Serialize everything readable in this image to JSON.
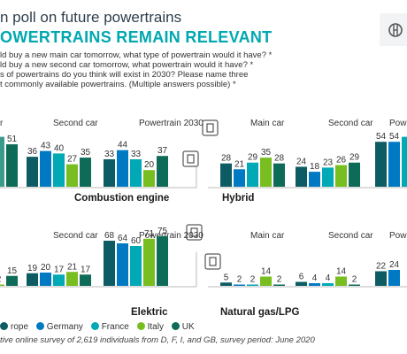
{
  "header": {
    "title": "n poll on future powertrains",
    "subtitle": "OWERTRAINS REMAIN RELEVANT",
    "questions": [
      "ld buy a new main car tomorrow, what type of powertrain would it have? *",
      "ld buy a new second car tomorrow, what powertrain would it have? *",
      "s of powertrains do you think will exist in 2030? Please name three",
      "t commonly available powertrains. (Multiple answers possible) *"
    ]
  },
  "colors": {
    "Europe": "#0d5c63",
    "Germany": "#0079c3",
    "France": "#00a9b5",
    "Italy": "#78be20",
    "UK": "#0e6b58",
    "Europe_light": "#3a9b8c"
  },
  "legend": {
    "items": [
      {
        "name": "rope",
        "color": "#0d5c63"
      },
      {
        "name": "Germany",
        "color": "#0079c3"
      },
      {
        "name": "France",
        "color": "#00a9b5"
      },
      {
        "name": "Italy",
        "color": "#78be20"
      },
      {
        "name": "UK",
        "color": "#0e6b58"
      }
    ]
  },
  "footnote": "tive online survey of 2,619 individuals from D, F, I, and GB, survey period: June 2020",
  "chart_data": [
    {
      "type": "bar",
      "title": "Combustion engine",
      "icon": "combustion-engine-icon",
      "groups": [
        {
          "label": "r",
          "series": [
            "Italy",
            "UK"
          ],
          "values": [
            null,
            51
          ]
        },
        {
          "label": "Second car",
          "series": [
            "Europe",
            "Germany",
            "France",
            "Italy",
            "UK"
          ],
          "values": [
            36,
            43,
            40,
            27,
            35
          ]
        },
        {
          "label": "Powertrain 2030",
          "series": [
            "Europe",
            "Germany",
            "France",
            "Italy",
            "UK"
          ],
          "values": [
            33,
            44,
            33,
            20,
            37
          ]
        }
      ]
    },
    {
      "type": "bar",
      "title": "Hybrid",
      "icon": "fuel-pump-icon",
      "groups": [
        {
          "label": "Main car",
          "series": [
            "Europe",
            "Germany",
            "France",
            "Italy",
            "UK"
          ],
          "values": [
            28,
            21,
            29,
            35,
            28
          ]
        },
        {
          "label": "Second car",
          "series": [
            "Europe",
            "Germany",
            "France",
            "Italy",
            "UK"
          ],
          "values": [
            24,
            18,
            23,
            26,
            29
          ]
        },
        {
          "label": "Powert",
          "series": [
            "Europe",
            "Germany",
            "France"
          ],
          "values": [
            54,
            54,
            null
          ]
        }
      ]
    },
    {
      "type": "bar",
      "title": "Elektric",
      "icon": "battery-icon",
      "groups": [
        {
          "label": "",
          "series": [
            "Italy",
            "UK"
          ],
          "values": [
            2,
            15
          ]
        },
        {
          "label": "Second car",
          "series": [
            "Europe",
            "Germany",
            "France",
            "Italy",
            "UK"
          ],
          "values": [
            19,
            20,
            17,
            21,
            17
          ]
        },
        {
          "label": "Powertrain 2030",
          "series": [
            "Europe",
            "Germany",
            "France",
            "Italy",
            "UK"
          ],
          "values": [
            68,
            64,
            60,
            71,
            75
          ]
        }
      ]
    },
    {
      "type": "bar",
      "title": "Natural gas/LPG",
      "icon": "gas-nozzle-icon",
      "groups": [
        {
          "label": "Main car",
          "series": [
            "Europe",
            "Germany",
            "France",
            "Italy",
            "UK"
          ],
          "values": [
            5,
            2,
            2,
            14,
            2
          ]
        },
        {
          "label": "Second car",
          "series": [
            "Europe",
            "Germany",
            "France",
            "Italy",
            "UK"
          ],
          "values": [
            6,
            4,
            4,
            14,
            2
          ]
        },
        {
          "label": "Powert",
          "series": [
            "Europe",
            "Germany"
          ],
          "values": [
            22,
            24
          ]
        }
      ]
    }
  ]
}
